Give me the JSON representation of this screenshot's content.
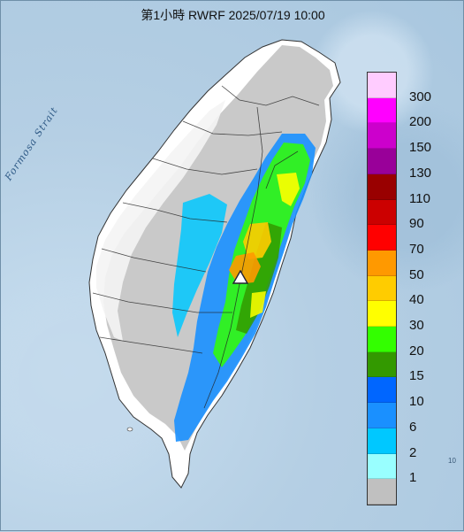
{
  "title": "第1小時  RWRF 2025/07/19 10:00",
  "strait_label": "Formosa Strait",
  "corner_mark": "10",
  "marker_icon": "triangle-station-icon",
  "legend": {
    "labels": [
      "300",
      "200",
      "150",
      "130",
      "110",
      "90",
      "70",
      "50",
      "40",
      "30",
      "20",
      "15",
      "10",
      "6",
      "2",
      "1"
    ],
    "colors": [
      "#ffccff",
      "#ff00ff",
      "#cc00cc",
      "#990099",
      "#990000",
      "#cc0000",
      "#ff0000",
      "#ff9900",
      "#ffcc00",
      "#ffff00",
      "#33ff00",
      "#339900",
      "#0066ff",
      "#1a90ff",
      "#00c8ff",
      "#99ffff",
      "#c0c0c0"
    ]
  },
  "colors": {
    "sea": "#b5cfe4",
    "land": "#ffffff",
    "rain_grey": "#c0c0c0"
  }
}
